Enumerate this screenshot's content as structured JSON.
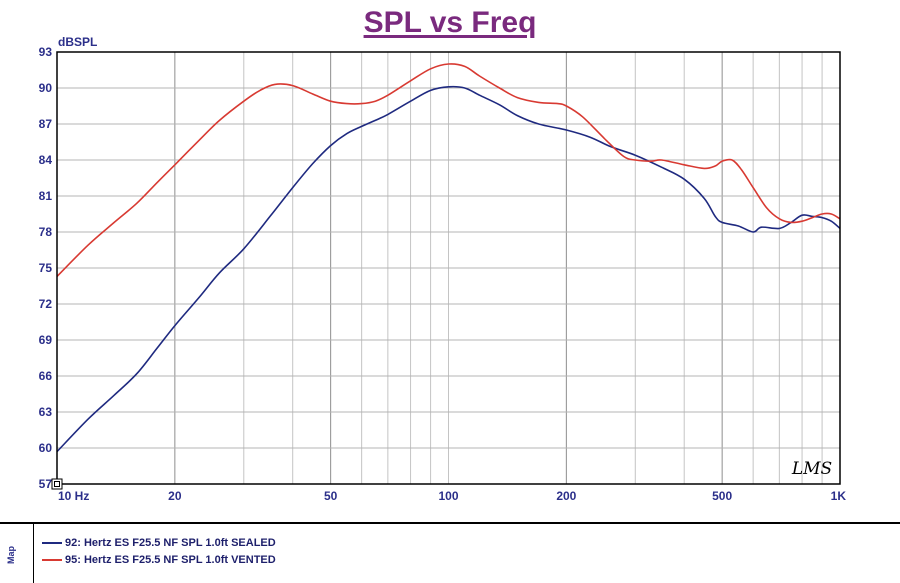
{
  "chart_data": {
    "type": "line",
    "title": "SPL vs Freq",
    "ylabel": "dBSPL",
    "xscale": "log",
    "xlim": [
      10,
      1000
    ],
    "ylim": [
      57,
      93
    ],
    "x_ticks": [
      {
        "value": 10,
        "label": "10 Hz"
      },
      {
        "value": 20,
        "label": "20"
      },
      {
        "value": 50,
        "label": "50"
      },
      {
        "value": 100,
        "label": "100"
      },
      {
        "value": 200,
        "label": "200"
      },
      {
        "value": 500,
        "label": "500"
      },
      {
        "value": 1000,
        "label": "1K"
      }
    ],
    "y_ticks": [
      {
        "value": 57,
        "label": "57"
      },
      {
        "value": 60,
        "label": "60"
      },
      {
        "value": 63,
        "label": "63"
      },
      {
        "value": 66,
        "label": "66"
      },
      {
        "value": 69,
        "label": "69"
      },
      {
        "value": 72,
        "label": "72"
      },
      {
        "value": 75,
        "label": "75"
      },
      {
        "value": 78,
        "label": "78"
      },
      {
        "value": 81,
        "label": "81"
      },
      {
        "value": 84,
        "label": "84"
      },
      {
        "value": 87,
        "label": "87"
      },
      {
        "value": 90,
        "label": "90"
      },
      {
        "value": 93,
        "label": "93"
      }
    ],
    "grid": true,
    "watermark": "LMS",
    "legend_title": "Map",
    "legend_position": "bottom",
    "series": [
      {
        "name": "92: Hertz ES F25.5 NF SPL 1.0ft SEALED",
        "color": "#1f2a80",
        "points": [
          [
            10,
            59.7
          ],
          [
            12,
            62.4
          ],
          [
            14,
            64.4
          ],
          [
            16,
            66.2
          ],
          [
            18,
            68.3
          ],
          [
            20,
            70.2
          ],
          [
            23,
            72.5
          ],
          [
            26,
            74.6
          ],
          [
            30,
            76.6
          ],
          [
            35,
            79.3
          ],
          [
            40,
            81.7
          ],
          [
            45,
            83.7
          ],
          [
            50,
            85.2
          ],
          [
            55,
            86.2
          ],
          [
            60,
            86.8
          ],
          [
            65,
            87.3
          ],
          [
            70,
            87.8
          ],
          [
            80,
            88.9
          ],
          [
            90,
            89.8
          ],
          [
            100,
            90.1
          ],
          [
            110,
            90.0
          ],
          [
            120,
            89.4
          ],
          [
            135,
            88.6
          ],
          [
            150,
            87.7
          ],
          [
            170,
            87.0
          ],
          [
            200,
            86.5
          ],
          [
            230,
            85.9
          ],
          [
            260,
            85.1
          ],
          [
            300,
            84.4
          ],
          [
            350,
            83.4
          ],
          [
            400,
            82.4
          ],
          [
            450,
            80.8
          ],
          [
            480,
            79.3
          ],
          [
            500,
            78.8
          ],
          [
            550,
            78.5
          ],
          [
            600,
            78.0
          ],
          [
            630,
            78.4
          ],
          [
            700,
            78.3
          ],
          [
            750,
            78.8
          ],
          [
            800,
            79.4
          ],
          [
            850,
            79.3
          ],
          [
            900,
            79.2
          ],
          [
            950,
            78.9
          ],
          [
            1000,
            78.3
          ]
        ]
      },
      {
        "name": "95: Hertz ES F25.5 NF SPL 1.0ft VENTED",
        "color": "#d83a32",
        "points": [
          [
            10,
            74.3
          ],
          [
            12,
            76.9
          ],
          [
            14,
            78.8
          ],
          [
            16,
            80.4
          ],
          [
            18,
            82.1
          ],
          [
            20,
            83.6
          ],
          [
            23,
            85.6
          ],
          [
            26,
            87.3
          ],
          [
            30,
            88.9
          ],
          [
            33,
            89.8
          ],
          [
            36,
            90.3
          ],
          [
            40,
            90.2
          ],
          [
            45,
            89.5
          ],
          [
            50,
            88.9
          ],
          [
            55,
            88.7
          ],
          [
            60,
            88.7
          ],
          [
            65,
            88.9
          ],
          [
            70,
            89.4
          ],
          [
            80,
            90.6
          ],
          [
            90,
            91.6
          ],
          [
            100,
            92.0
          ],
          [
            110,
            91.8
          ],
          [
            120,
            91.0
          ],
          [
            135,
            90.0
          ],
          [
            150,
            89.2
          ],
          [
            170,
            88.8
          ],
          [
            190,
            88.7
          ],
          [
            200,
            88.5
          ],
          [
            220,
            87.6
          ],
          [
            250,
            85.8
          ],
          [
            280,
            84.3
          ],
          [
            300,
            84.0
          ],
          [
            330,
            83.9
          ],
          [
            350,
            84.0
          ],
          [
            400,
            83.6
          ],
          [
            450,
            83.3
          ],
          [
            480,
            83.5
          ],
          [
            500,
            83.9
          ],
          [
            530,
            84.0
          ],
          [
            560,
            83.2
          ],
          [
            600,
            81.7
          ],
          [
            650,
            80.0
          ],
          [
            700,
            79.1
          ],
          [
            750,
            78.8
          ],
          [
            800,
            78.9
          ],
          [
            850,
            79.2
          ],
          [
            900,
            79.5
          ],
          [
            950,
            79.5
          ],
          [
            1000,
            79.1
          ]
        ]
      }
    ]
  }
}
